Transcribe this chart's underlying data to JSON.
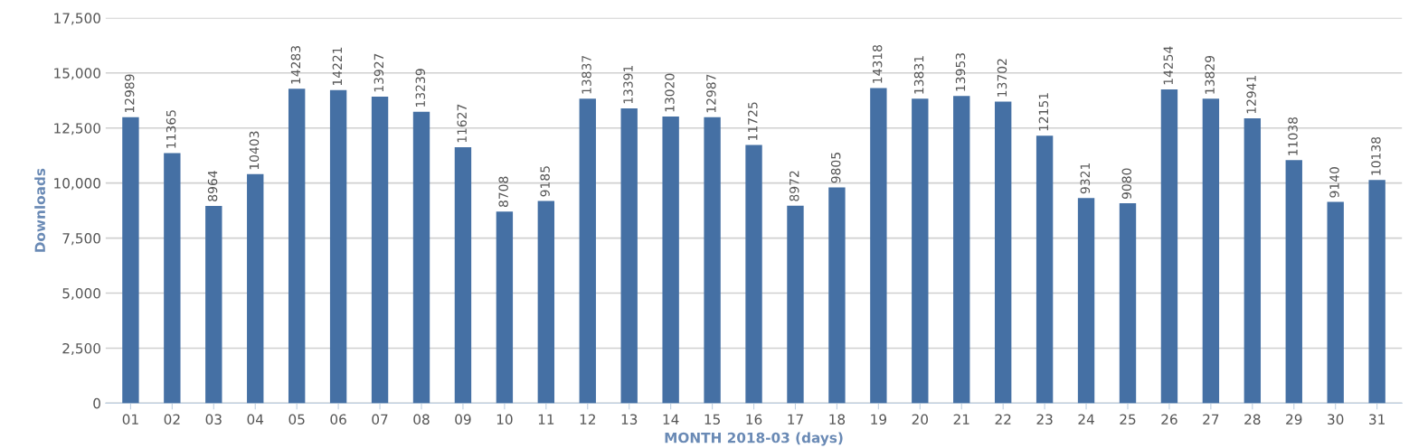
{
  "chart_data": {
    "type": "bar",
    "xlabel": "MONTH 2018-03 (days)",
    "ylabel": "Downloads",
    "categories": [
      "01",
      "02",
      "03",
      "04",
      "05",
      "06",
      "07",
      "08",
      "09",
      "10",
      "11",
      "12",
      "13",
      "14",
      "15",
      "16",
      "17",
      "18",
      "19",
      "20",
      "21",
      "22",
      "23",
      "24",
      "25",
      "26",
      "27",
      "28",
      "29",
      "30",
      "31"
    ],
    "values": [
      12989,
      11365,
      8964,
      10403,
      14283,
      14221,
      13927,
      13239,
      11627,
      8708,
      9185,
      13837,
      13391,
      13020,
      12987,
      11725,
      8972,
      9805,
      14318,
      13831,
      13953,
      13702,
      12151,
      9321,
      9080,
      14254,
      13829,
      12941,
      11038,
      9140,
      10138
    ],
    "color": "#4570a4",
    "ylim": [
      0,
      17500
    ],
    "yticks": [
      0,
      {
        "value": 2500,
        "label": "2,500"
      },
      {
        "value": 5000,
        "label": "5,000"
      },
      {
        "value": 7500,
        "label": "7,500"
      },
      {
        "value": 10000,
        "label": "10,000"
      },
      {
        "value": 12500,
        "label": "12,500"
      },
      {
        "value": 15000,
        "label": "15,000"
      },
      {
        "value": 17500,
        "label": "17,500"
      }
    ],
    "grid": "y",
    "data_labels": true,
    "legend": false
  }
}
